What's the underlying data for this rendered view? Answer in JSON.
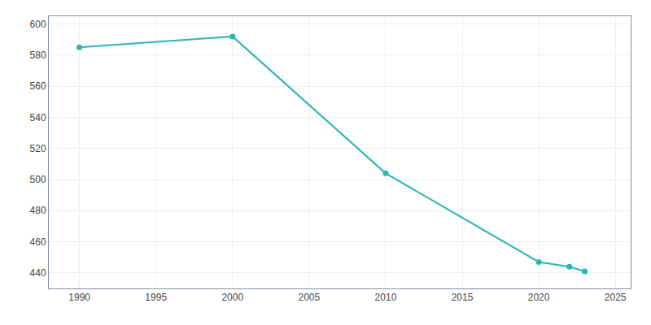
{
  "chart_data": {
    "type": "line",
    "x": [
      1990,
      2000,
      2010,
      2020,
      2022,
      2023
    ],
    "values": [
      585,
      592,
      504,
      447,
      444,
      441
    ],
    "color": "#2AB5B5",
    "marker": "circle",
    "xlim": [
      1988,
      2026
    ],
    "ylim": [
      430,
      605
    ],
    "xticks": [
      1990,
      1995,
      2000,
      2005,
      2010,
      2015,
      2020,
      2025
    ],
    "yticks": [
      440,
      460,
      480,
      500,
      520,
      540,
      560,
      580,
      600
    ],
    "grid": true
  }
}
